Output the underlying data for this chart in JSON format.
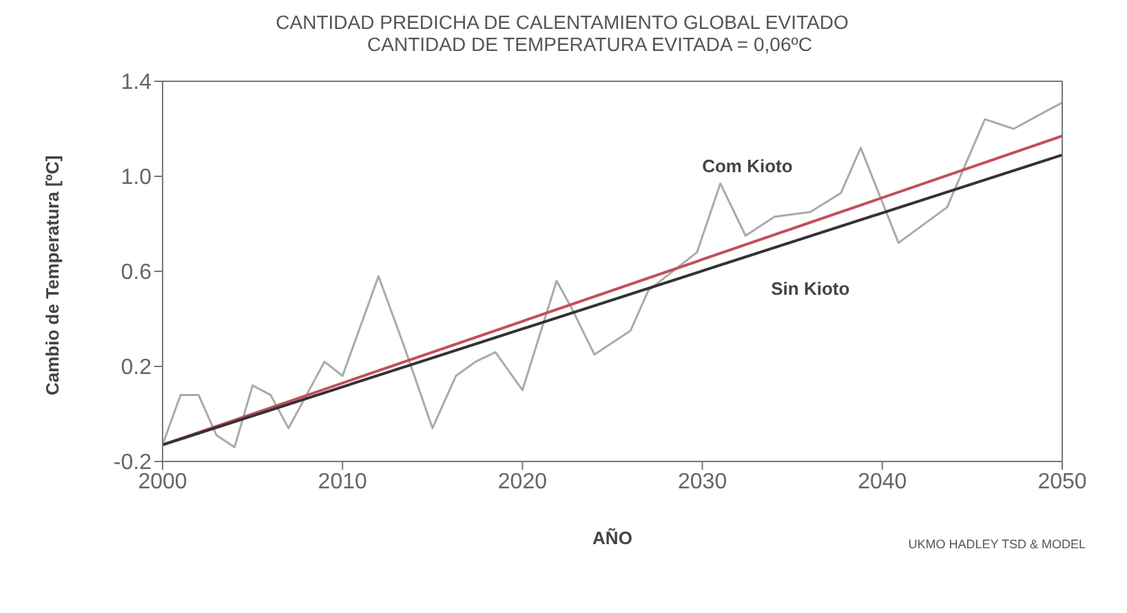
{
  "chart_data": {
    "type": "line",
    "title": "CANTIDAD PREDICHA DE CALENTAMIENTO GLOBAL EVITADO",
    "subtitle": "CANTIDAD DE TEMPERATURA EVITADA = 0,06ºC",
    "xlabel": "AÑO",
    "ylabel": "Cambio de Temperatura [ºC]",
    "annotations": [
      "UKMO HADLEY TSD & MODEL"
    ],
    "xlim": [
      2000,
      2050
    ],
    "xticks": [
      2000,
      2010,
      2020,
      2030,
      2040,
      2050
    ],
    "ylim": [
      -0.2,
      1.4
    ],
    "yticks": [
      -0.2,
      0.2,
      0.6,
      {
        "value": 1,
        "label": "1.0"
      },
      1.4
    ],
    "grid": false,
    "series": [
      {
        "color": "#aaaaaa",
        "x": [
          2000,
          2001,
          2002,
          2003,
          2004,
          2005,
          2006,
          2007,
          2009,
          2010,
          2012,
          2013.4,
          2015,
          2016.3,
          2017.4,
          2018.5,
          2020,
          2021.9,
          2022.7,
          2024,
          2026,
          2027,
          2029.7,
          2031,
          2032.4,
          2034,
          2036,
          2037.7,
          2038.8,
          2039.9,
          2040.9,
          2043.6,
          2045.7,
          2047.3,
          2049,
          2050
        ],
        "values": [
          -0.13,
          0.08,
          0.08,
          -0.09,
          -0.14,
          0.12,
          0.08,
          -0.06,
          0.22,
          0.16,
          0.58,
          0.29,
          -0.06,
          0.16,
          0.22,
          0.26,
          0.1,
          0.56,
          0.45,
          0.25,
          0.35,
          0.52,
          0.68,
          0.97,
          0.75,
          0.83,
          0.85,
          0.93,
          1.12,
          0.91,
          0.72,
          0.87,
          1.24,
          1.2,
          1.27,
          1.31
        ]
      },
      {
        "name": "Com Kioto",
        "color": "#c0505a",
        "x": [
          2000,
          2050
        ],
        "values": [
          -0.13,
          1.17
        ]
      },
      {
        "name": "Sin Kioto",
        "color": "#333333",
        "x": [
          2000,
          2050
        ],
        "values": [
          -0.13,
          1.09
        ]
      }
    ]
  }
}
